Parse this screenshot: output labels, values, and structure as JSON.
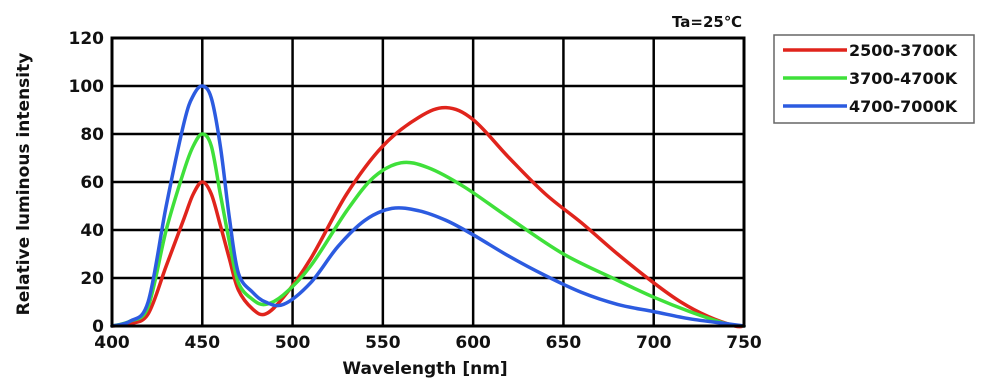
{
  "chart_data": {
    "type": "line",
    "title": "",
    "annotation": "Ta=25℃",
    "xlabel": "Wavelength [nm]",
    "ylabel": "Relative luminous intensity",
    "xlim": [
      400,
      750
    ],
    "ylim": [
      0,
      120
    ],
    "x_ticks": [
      400,
      450,
      500,
      550,
      600,
      650,
      700,
      750
    ],
    "y_ticks": [
      0,
      20,
      40,
      60,
      80,
      100,
      120
    ],
    "grid": true,
    "legend_position": "outside-top-right",
    "series": [
      {
        "name": "2500-3700K",
        "color": "#e0241c",
        "points": [
          [
            400,
            0
          ],
          [
            410,
            1
          ],
          [
            420,
            5
          ],
          [
            430,
            25
          ],
          [
            440,
            45
          ],
          [
            445,
            55
          ],
          [
            450,
            60
          ],
          [
            455,
            55
          ],
          [
            460,
            42
          ],
          [
            465,
            28
          ],
          [
            470,
            15
          ],
          [
            478,
            7
          ],
          [
            485,
            5
          ],
          [
            495,
            12
          ],
          [
            510,
            28
          ],
          [
            530,
            55
          ],
          [
            550,
            75
          ],
          [
            570,
            87
          ],
          [
            585,
            91
          ],
          [
            600,
            86
          ],
          [
            620,
            70
          ],
          [
            640,
            55
          ],
          [
            660,
            43
          ],
          [
            680,
            30
          ],
          [
            700,
            18
          ],
          [
            715,
            10
          ],
          [
            730,
            4
          ],
          [
            745,
            0
          ],
          [
            750,
            0
          ]
        ]
      },
      {
        "name": "3700-4700K",
        "color": "#3fe03a",
        "points": [
          [
            400,
            0
          ],
          [
            410,
            2
          ],
          [
            420,
            8
          ],
          [
            430,
            40
          ],
          [
            440,
            65
          ],
          [
            445,
            75
          ],
          [
            450,
            80
          ],
          [
            455,
            75
          ],
          [
            460,
            55
          ],
          [
            465,
            35
          ],
          [
            470,
            18
          ],
          [
            478,
            11
          ],
          [
            485,
            9
          ],
          [
            495,
            13
          ],
          [
            510,
            25
          ],
          [
            530,
            48
          ],
          [
            545,
            62
          ],
          [
            560,
            68
          ],
          [
            575,
            66
          ],
          [
            595,
            58
          ],
          [
            620,
            45
          ],
          [
            650,
            30
          ],
          [
            680,
            19
          ],
          [
            700,
            12
          ],
          [
            720,
            6
          ],
          [
            740,
            1
          ],
          [
            750,
            0
          ]
        ]
      },
      {
        "name": "4700-7000K",
        "color": "#2c5be0",
        "points": [
          [
            400,
            0
          ],
          [
            410,
            2
          ],
          [
            420,
            10
          ],
          [
            430,
            50
          ],
          [
            440,
            85
          ],
          [
            445,
            96
          ],
          [
            450,
            100
          ],
          [
            455,
            95
          ],
          [
            460,
            75
          ],
          [
            465,
            45
          ],
          [
            470,
            22
          ],
          [
            478,
            14
          ],
          [
            485,
            10
          ],
          [
            495,
            9
          ],
          [
            510,
            18
          ],
          [
            525,
            33
          ],
          [
            540,
            44
          ],
          [
            555,
            49
          ],
          [
            570,
            48
          ],
          [
            585,
            44
          ],
          [
            600,
            38
          ],
          [
            620,
            29
          ],
          [
            640,
            21
          ],
          [
            660,
            14
          ],
          [
            680,
            9
          ],
          [
            700,
            6
          ],
          [
            720,
            3
          ],
          [
            740,
            1
          ],
          [
            750,
            0
          ]
        ]
      }
    ]
  }
}
